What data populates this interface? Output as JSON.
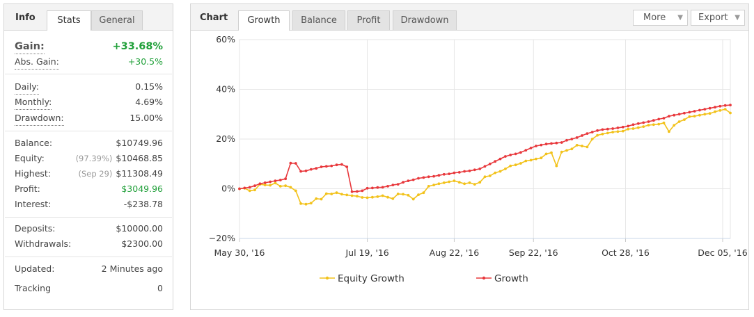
{
  "info_panel": {
    "title": "Info",
    "tabs": [
      {
        "label": "Stats",
        "active": true
      },
      {
        "label": "General",
        "active": false
      }
    ],
    "gain": {
      "label": "Gain:",
      "value": "+33.68%"
    },
    "abs_gain": {
      "label": "Abs. Gain:",
      "value": "+30.5%"
    },
    "daily": {
      "label": "Daily:",
      "value": "0.15%"
    },
    "monthly": {
      "label": "Monthly:",
      "value": "4.69%"
    },
    "drawdown": {
      "label": "Drawdown:",
      "value": "15.00%"
    },
    "balance": {
      "label": "Balance:",
      "value": "$10749.96"
    },
    "equity": {
      "label": "Equity:",
      "note": "(97.39%)",
      "value": "$10468.85"
    },
    "highest": {
      "label": "Highest:",
      "note": "(Sep 29)",
      "value": "$11308.49"
    },
    "profit": {
      "label": "Profit:",
      "value": "$3049.96"
    },
    "interest": {
      "label": "Interest:",
      "value": "-$238.78"
    },
    "deposits": {
      "label": "Deposits:",
      "value": "$10000.00"
    },
    "withdrawals": {
      "label": "Withdrawals:",
      "value": "$2300.00"
    },
    "updated": {
      "label": "Updated:",
      "value": "2 Minutes ago"
    },
    "tracking": {
      "label": "Tracking",
      "value": "0"
    },
    "colors": {
      "positive": "#21a03a"
    }
  },
  "chart_panel": {
    "title": "Chart",
    "tabs": [
      {
        "label": "Growth",
        "active": true
      },
      {
        "label": "Balance",
        "active": false
      },
      {
        "label": "Profit",
        "active": false
      },
      {
        "label": "Drawdown",
        "active": false
      }
    ],
    "more_label": "More",
    "export_label": "Export"
  },
  "chart_data": {
    "type": "line",
    "x_type": "date",
    "x_ticks": [
      "May 30, '16",
      "Jul 19, '16",
      "Aug 22, '16",
      "Sep 22, '16",
      "Oct 28, '16",
      "Dec 05, '16"
    ],
    "x_tick_dates": [
      "2016-05-30",
      "2016-07-19",
      "2016-08-22",
      "2016-09-22",
      "2016-10-28",
      "2016-12-05"
    ],
    "y_ticks": [
      "60%",
      "40%",
      "20%",
      "0%",
      "−20%"
    ],
    "y_tick_values": [
      60,
      40,
      20,
      0,
      -20
    ],
    "ylim": [
      -20,
      60
    ],
    "y_unit": "%",
    "grid": true,
    "legend_position": "bottom",
    "series": [
      {
        "name": "Equity Growth",
        "color": "#f2c21b",
        "x": [
          "2016-05-30",
          "2016-06-01",
          "2016-06-03",
          "2016-06-05",
          "2016-06-07",
          "2016-06-09",
          "2016-06-11",
          "2016-06-13",
          "2016-06-15",
          "2016-06-17",
          "2016-06-19",
          "2016-06-21",
          "2016-06-23",
          "2016-06-25",
          "2016-06-27",
          "2016-06-29",
          "2016-07-01",
          "2016-07-03",
          "2016-07-05",
          "2016-07-07",
          "2016-07-09",
          "2016-07-11",
          "2016-07-13",
          "2016-07-15",
          "2016-07-17",
          "2016-07-19",
          "2016-07-21",
          "2016-07-23",
          "2016-07-25",
          "2016-07-27",
          "2016-07-29",
          "2016-07-31",
          "2016-08-02",
          "2016-08-04",
          "2016-08-06",
          "2016-08-08",
          "2016-08-10",
          "2016-08-12",
          "2016-08-14",
          "2016-08-16",
          "2016-08-18",
          "2016-08-20",
          "2016-08-22",
          "2016-08-24",
          "2016-08-26",
          "2016-08-28",
          "2016-08-30",
          "2016-09-01",
          "2016-09-03",
          "2016-09-05",
          "2016-09-07",
          "2016-09-09",
          "2016-09-11",
          "2016-09-13",
          "2016-09-15",
          "2016-09-17",
          "2016-09-19",
          "2016-09-21",
          "2016-09-23",
          "2016-09-25",
          "2016-09-27",
          "2016-09-29",
          "2016-10-01",
          "2016-10-03",
          "2016-10-05",
          "2016-10-07",
          "2016-10-09",
          "2016-10-11",
          "2016-10-13",
          "2016-10-15",
          "2016-10-17",
          "2016-10-19",
          "2016-10-21",
          "2016-10-23",
          "2016-10-25",
          "2016-10-27",
          "2016-10-29",
          "2016-10-31",
          "2016-11-02",
          "2016-11-04",
          "2016-11-06",
          "2016-11-08",
          "2016-11-10",
          "2016-11-12",
          "2016-11-14",
          "2016-11-16",
          "2016-11-18",
          "2016-11-20",
          "2016-11-22",
          "2016-11-24",
          "2016-11-26",
          "2016-11-28",
          "2016-11-30",
          "2016-12-02",
          "2016-12-04",
          "2016-12-06",
          "2016-12-08"
        ],
        "values": [
          0,
          0.2,
          -0.8,
          -0.5,
          1.8,
          1.5,
          1.4,
          2.3,
          1.0,
          1.2,
          0.6,
          -0.8,
          -6.0,
          -6.2,
          -5.8,
          -4.0,
          -4.2,
          -2.0,
          -2.1,
          -1.6,
          -2.2,
          -2.5,
          -2.8,
          -3.0,
          -3.5,
          -3.6,
          -3.4,
          -3.2,
          -2.8,
          -3.4,
          -4.0,
          -2.1,
          -2.2,
          -2.6,
          -4.2,
          -2.4,
          -1.6,
          1.0,
          1.5,
          2.0,
          2.4,
          2.8,
          3.2,
          2.6,
          2.0,
          2.4,
          1.8,
          2.6,
          4.8,
          5.2,
          6.4,
          7.0,
          8.0,
          9.2,
          9.6,
          10.2,
          11.2,
          11.5,
          12.0,
          12.4,
          14.0,
          14.5,
          9.2,
          14.8,
          15.4,
          16.0,
          17.5,
          17.2,
          16.8,
          20.0,
          21.5,
          22.0,
          22.4,
          22.8,
          23.0,
          23.2,
          24.0,
          24.2,
          24.6,
          25.0,
          25.6,
          25.8,
          26.0,
          26.5,
          23.0,
          25.5,
          27.0,
          27.8,
          29.0,
          29.2,
          29.6,
          30.0,
          30.3,
          31.0,
          31.5,
          32.0,
          30.5
        ]
      },
      {
        "name": "Growth",
        "color": "#e8383c",
        "x": [
          "2016-05-30",
          "2016-06-01",
          "2016-06-03",
          "2016-06-05",
          "2016-06-07",
          "2016-06-09",
          "2016-06-11",
          "2016-06-13",
          "2016-06-15",
          "2016-06-17",
          "2016-06-19",
          "2016-06-21",
          "2016-06-23",
          "2016-06-25",
          "2016-06-27",
          "2016-06-29",
          "2016-07-01",
          "2016-07-03",
          "2016-07-05",
          "2016-07-07",
          "2016-07-09",
          "2016-07-11",
          "2016-07-13",
          "2016-07-15",
          "2016-07-17",
          "2016-07-19",
          "2016-07-21",
          "2016-07-23",
          "2016-07-25",
          "2016-07-27",
          "2016-07-29",
          "2016-07-31",
          "2016-08-02",
          "2016-08-04",
          "2016-08-06",
          "2016-08-08",
          "2016-08-10",
          "2016-08-12",
          "2016-08-14",
          "2016-08-16",
          "2016-08-18",
          "2016-08-20",
          "2016-08-22",
          "2016-08-24",
          "2016-08-26",
          "2016-08-28",
          "2016-08-30",
          "2016-09-01",
          "2016-09-03",
          "2016-09-05",
          "2016-09-07",
          "2016-09-09",
          "2016-09-11",
          "2016-09-13",
          "2016-09-15",
          "2016-09-17",
          "2016-09-19",
          "2016-09-21",
          "2016-09-23",
          "2016-09-25",
          "2016-09-27",
          "2016-09-29",
          "2016-10-01",
          "2016-10-03",
          "2016-10-05",
          "2016-10-07",
          "2016-10-09",
          "2016-10-11",
          "2016-10-13",
          "2016-10-15",
          "2016-10-17",
          "2016-10-19",
          "2016-10-21",
          "2016-10-23",
          "2016-10-25",
          "2016-10-27",
          "2016-10-29",
          "2016-10-31",
          "2016-11-02",
          "2016-11-04",
          "2016-11-06",
          "2016-11-08",
          "2016-11-10",
          "2016-11-12",
          "2016-11-14",
          "2016-11-16",
          "2016-11-18",
          "2016-11-20",
          "2016-11-22",
          "2016-11-24",
          "2016-11-26",
          "2016-11-28",
          "2016-11-30",
          "2016-12-02",
          "2016-12-04",
          "2016-12-06",
          "2016-12-08"
        ],
        "values": [
          0,
          0.3,
          0.6,
          1.2,
          2.0,
          2.4,
          2.8,
          3.2,
          3.5,
          4.0,
          10.3,
          10.2,
          7.0,
          7.2,
          7.8,
          8.2,
          8.8,
          9.0,
          9.2,
          9.6,
          9.8,
          8.8,
          -1.2,
          -1.1,
          -0.8,
          0.2,
          0.3,
          0.5,
          0.6,
          1.0,
          1.5,
          1.8,
          2.6,
          3.2,
          3.6,
          4.2,
          4.5,
          4.8,
          5.0,
          5.4,
          5.8,
          6.0,
          6.4,
          6.6,
          7.0,
          7.2,
          7.6,
          8.0,
          9.0,
          10.0,
          11.0,
          12.0,
          13.0,
          13.6,
          14.0,
          14.6,
          15.5,
          16.4,
          17.2,
          17.6,
          18.0,
          18.2,
          18.4,
          18.6,
          19.5,
          20.0,
          20.6,
          21.4,
          22.2,
          22.8,
          23.4,
          23.8,
          24.0,
          24.2,
          24.5,
          24.8,
          25.2,
          25.8,
          26.2,
          26.6,
          27.0,
          27.5,
          28.0,
          28.4,
          29.2,
          29.6,
          30.0,
          30.4,
          30.8,
          31.2,
          31.6,
          32.0,
          32.4,
          32.8,
          33.2,
          33.5,
          33.68
        ]
      }
    ]
  }
}
